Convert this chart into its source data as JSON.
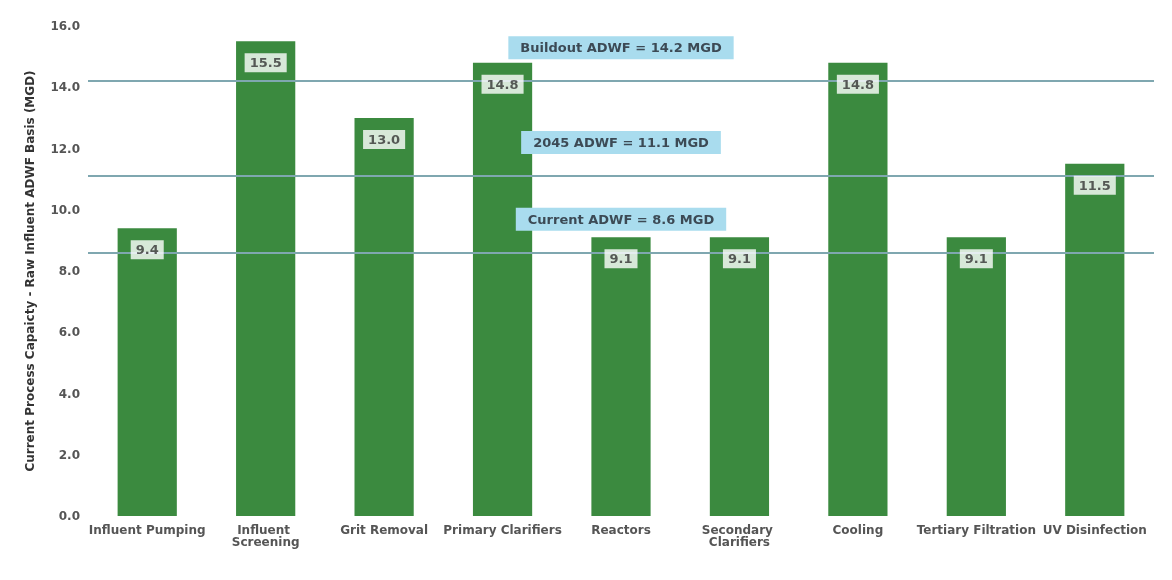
{
  "chart_data": {
    "type": "bar",
    "ylabel": "Current Process Capaicty - Raw Influent ADWF Basis (MGD)",
    "categories": [
      "Influent Pumping",
      "Influent Screening",
      "Grit Removal",
      "Primary Clarifiers",
      "Reactors",
      "Secondary Clarifiers",
      "Cooling",
      "Tertiary Filtration",
      "UV Disinfection"
    ],
    "values": [
      9.4,
      15.5,
      13.0,
      14.8,
      9.1,
      9.1,
      14.8,
      9.1,
      11.5
    ],
    "value_labels": [
      "9.4",
      "15.5",
      "13.0",
      "14.8",
      "9.1",
      "9.1",
      "14.8",
      "9.1",
      "11.5"
    ],
    "color": "#3b8a3f",
    "ylim": [
      0,
      16
    ],
    "yticks": [
      {
        "value": 0,
        "label": "0.0"
      },
      {
        "value": 2,
        "label": "2.0"
      },
      {
        "value": 4,
        "label": "4.0"
      },
      {
        "value": 6,
        "label": "6.0"
      },
      {
        "value": 8,
        "label": "8.0"
      },
      {
        "value": 10,
        "label": "10.0"
      },
      {
        "value": 12,
        "label": "12.0"
      },
      {
        "value": 14,
        "label": "14.0"
      },
      {
        "value": 16,
        "label": "16.0"
      }
    ],
    "grid": false,
    "ref_lines": [
      {
        "axis": "y",
        "value": 8.6,
        "label": "Current ADWF = 8.6 MGD",
        "color": "#7fa7b0"
      },
      {
        "axis": "y",
        "value": 11.1,
        "label": "2045 ADWF = 11.1 MGD",
        "color": "#7fa7b0"
      },
      {
        "axis": "y",
        "value": 14.2,
        "label": "Buildout ADWF = 14.2 MGD",
        "color": "#7fa7b0"
      }
    ]
  }
}
